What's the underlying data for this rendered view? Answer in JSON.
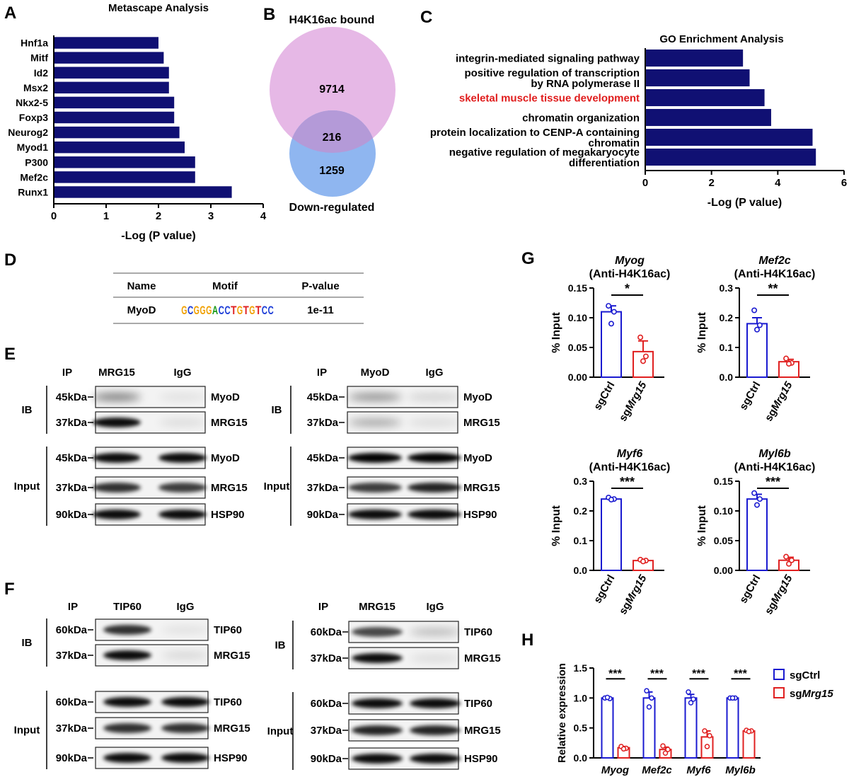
{
  "panels": {
    "A": "A",
    "B": "B",
    "C": "C",
    "D": "D",
    "E": "E",
    "F": "F",
    "G": "G",
    "H": "H"
  },
  "colors": {
    "navy": "#101073",
    "blue": "#1a1ad0",
    "red": "#e02020",
    "venn_pink": "#e6b8e6",
    "venn_blue": "#8fb6f0",
    "venn_overlap": "#b49ad8",
    "highlight": "#e01c1c"
  },
  "chart_data": [
    {
      "id": "A",
      "type": "bar",
      "orientation": "horizontal",
      "title": "Metascape Analysis",
      "xlabel": "-Log (P value)",
      "categories": [
        "Hnf1a",
        "Mitf",
        "Id2",
        "Msx2",
        "Nkx2-5",
        "Foxp3",
        "Neurog2",
        "Myod1",
        "P300",
        "Mef2c",
        "Runx1"
      ],
      "values": [
        2.0,
        2.1,
        2.2,
        2.2,
        2.3,
        2.3,
        2.4,
        2.5,
        2.7,
        2.7,
        3.4
      ],
      "xlim": [
        0,
        4
      ],
      "xticks": [
        "0",
        "1",
        "2",
        "3",
        "4"
      ]
    },
    {
      "id": "C",
      "type": "bar",
      "orientation": "horizontal",
      "title": "GO Enrichment Analysis",
      "xlabel": "-Log (P value)",
      "categories": [
        [
          "integrin-mediated signaling pathway"
        ],
        [
          "positive regulation of transcription",
          "by RNA polymerase II"
        ],
        [
          "skeletal muscle tissue development"
        ],
        [
          "chromatin organization"
        ],
        [
          "protein localization to CENP-A containing",
          "chromatin"
        ],
        [
          "negative regulation of megakaryocyte",
          "differentiation"
        ]
      ],
      "highlight_index": 2,
      "values": [
        2.95,
        3.15,
        3.6,
        3.8,
        5.05,
        5.15
      ],
      "xlim": [
        0,
        6
      ],
      "xticks": [
        "0",
        "2",
        "4",
        "6"
      ]
    },
    {
      "id": "G1",
      "type": "bar",
      "gene": "Myog",
      "subtitle": "(Anti-H4K16ac)",
      "ylabel": "% Input",
      "categories": [
        "sgCtrl",
        "sgMrg15"
      ],
      "values": [
        0.11,
        0.043
      ],
      "errors": [
        0.01,
        0.018
      ],
      "points": [
        [
          0.12,
          0.11,
          0.09
        ],
        [
          0.067,
          0.035,
          0.027
        ]
      ],
      "ylim": [
        0,
        0.15
      ],
      "yticks": [
        0,
        0.05,
        0.1,
        0.15
      ],
      "yticklabels": [
        "0.00",
        "0.05",
        "0.10",
        "0.15"
      ],
      "significance": "*"
    },
    {
      "id": "G2",
      "type": "bar",
      "gene": "Mef2c",
      "subtitle": "(Anti-H4K16ac)",
      "ylabel": "% Input",
      "categories": [
        "sgCtrl",
        "sgMrg15"
      ],
      "values": [
        0.18,
        0.052
      ],
      "errors": [
        0.02,
        0.008
      ],
      "points": [
        [
          0.225,
          0.175,
          0.16
        ],
        [
          0.063,
          0.048,
          0.045
        ]
      ],
      "ylim": [
        0,
        0.3
      ],
      "yticks": [
        0,
        0.1,
        0.2,
        0.3
      ],
      "yticklabels": [
        "0.0",
        "0.1",
        "0.2",
        "0.3"
      ],
      "significance": "**"
    },
    {
      "id": "G3",
      "type": "bar",
      "gene": "Myf6",
      "subtitle": "(Anti-H4K16ac)",
      "ylabel": "% Input",
      "categories": [
        "sgCtrl",
        "sgMrg15"
      ],
      "values": [
        0.24,
        0.033
      ],
      "errors": [
        0.004,
        0.003
      ],
      "points": [
        [
          0.245,
          0.24,
          0.238
        ],
        [
          0.036,
          0.033,
          0.03
        ]
      ],
      "ylim": [
        0,
        0.3
      ],
      "yticks": [
        0,
        0.1,
        0.2,
        0.3
      ],
      "yticklabels": [
        "0.0",
        "0.1",
        "0.2",
        "0.3"
      ],
      "significance": "***"
    },
    {
      "id": "G4",
      "type": "bar",
      "gene": "Myl6b",
      "subtitle": "(Anti-H4K16ac)",
      "ylabel": "% Input",
      "categories": [
        "sgCtrl",
        "sgMrg15"
      ],
      "values": [
        0.12,
        0.017
      ],
      "errors": [
        0.008,
        0.005
      ],
      "points": [
        [
          0.13,
          0.12,
          0.11
        ],
        [
          0.023,
          0.017,
          0.011
        ]
      ],
      "ylim": [
        0,
        0.15
      ],
      "yticks": [
        0,
        0.05,
        0.1,
        0.15
      ],
      "yticklabels": [
        "0.00",
        "0.05",
        "0.10",
        "0.15"
      ],
      "significance": "***"
    },
    {
      "id": "H",
      "type": "bar",
      "ylabel": "Relative expression",
      "categories": [
        "Myog",
        "Mef2c",
        "Myf6",
        "Myl6b"
      ],
      "series": [
        {
          "name": "sgCtrl",
          "values": [
            1.0,
            1.0,
            1.0,
            1.0
          ],
          "errors": [
            0.01,
            0.1,
            0.06,
            0.005
          ],
          "points": [
            [
              1.0,
              0.99,
              1.01
            ],
            [
              1.12,
              1.0,
              0.85
            ],
            [
              1.1,
              0.98,
              0.92
            ],
            [
              1.0,
              1.0,
              1.0
            ]
          ]
        },
        {
          "name": "sgMrg15",
          "values": [
            0.17,
            0.14,
            0.35,
            0.45
          ],
          "errors": [
            0.02,
            0.04,
            0.1,
            0.01
          ],
          "points": [
            [
              0.19,
              0.16,
              0.15
            ],
            [
              0.2,
              0.14,
              0.08
            ],
            [
              0.45,
              0.37,
              0.19
            ],
            [
              0.46,
              0.45,
              0.44
            ]
          ]
        }
      ],
      "ylim": [
        0,
        1.5
      ],
      "yticks": [
        0,
        0.5,
        1,
        1.5
      ],
      "yticklabels": [
        "0.0",
        "0.5",
        "1.0",
        "1.5"
      ],
      "significance": [
        "***",
        "***",
        "***",
        "***"
      ]
    }
  ],
  "venn": {
    "title": "H4K16ac bound",
    "top_count": "9714",
    "overlap_count": "216",
    "bottom_count": "1259",
    "bottom_label": "Down-regulated"
  },
  "motif_table": {
    "headers": [
      "Name",
      "Motif",
      "P-value"
    ],
    "row": [
      "MyoD",
      "GCGGGACCTGTGTCC",
      "1e-11"
    ]
  },
  "blots": {
    "E_left": {
      "ip": "IP",
      "lanes": [
        "MRG15",
        "IgG"
      ],
      "ib": "IB",
      "input": "Input",
      "rows": [
        [
          "45kDa",
          "MyoD"
        ],
        [
          "37kDa",
          "MRG15"
        ],
        [
          "45kDa",
          "MyoD"
        ],
        [
          "37kDa",
          "MRG15"
        ],
        [
          "90kDa",
          "HSP90"
        ]
      ]
    },
    "E_right": {
      "ip": "IP",
      "lanes": [
        "MyoD",
        "IgG"
      ],
      "ib": "IB",
      "input": "Input",
      "rows": [
        [
          "45kDa",
          "MyoD"
        ],
        [
          "37kDa",
          "MRG15"
        ],
        [
          "45kDa",
          "MyoD"
        ],
        [
          "37kDa",
          "MRG15"
        ],
        [
          "90kDa",
          "HSP90"
        ]
      ]
    },
    "F_left": {
      "ip": "IP",
      "lanes": [
        "TIP60",
        "IgG"
      ],
      "ib": "IB",
      "input": "Input",
      "rows": [
        [
          "60kDa",
          "TIP60"
        ],
        [
          "37kDa",
          "MRG15"
        ],
        [
          "60kDa",
          "TIP60"
        ],
        [
          "37kDa",
          "MRG15"
        ],
        [
          "90kDa",
          "HSP90"
        ]
      ]
    },
    "F_right": {
      "ip": "IP",
      "lanes": [
        "MRG15",
        "IgG"
      ],
      "ib": "IB",
      "input": "Input",
      "rows": [
        [
          "60kDa",
          "TIP60"
        ],
        [
          "37kDa",
          "MRG15"
        ],
        [
          "60kDa",
          "TIP60"
        ],
        [
          "37kDa",
          "MRG15"
        ],
        [
          "90kDa",
          "HSP90"
        ]
      ]
    }
  }
}
